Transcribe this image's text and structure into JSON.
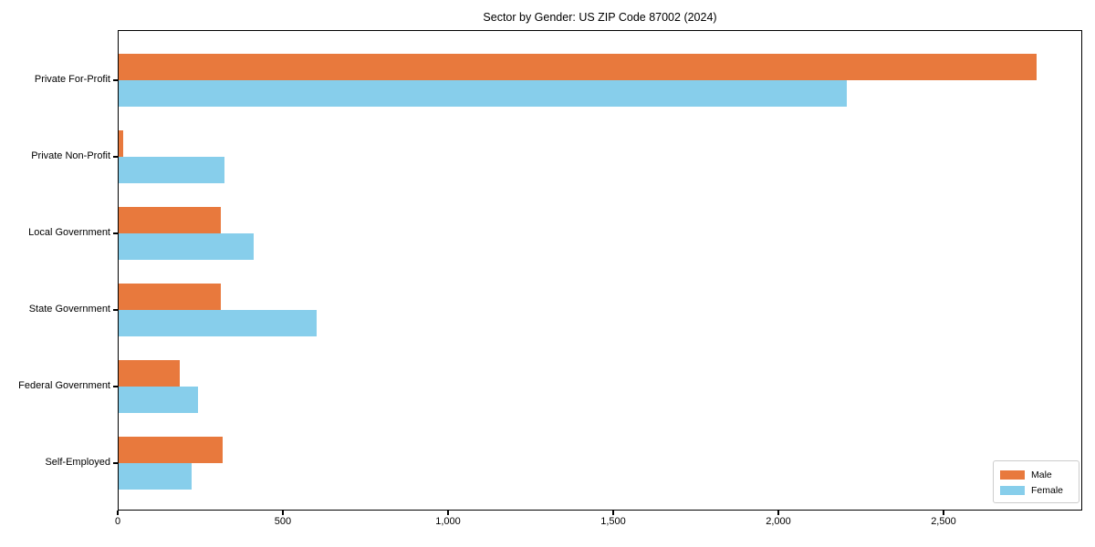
{
  "title": "Sector by Gender: US ZIP Code 87002 (2024)",
  "chart_data": {
    "type": "bar",
    "orientation": "horizontal",
    "title": "Sector by Gender: US ZIP Code 87002 (2024)",
    "categories": [
      "Private For-Profit",
      "Private Non-Profit",
      "Local Government",
      "State Government",
      "Federal Government",
      "Self-Employed"
    ],
    "series": [
      {
        "name": "Male",
        "color": "#e8793d",
        "values": [
          2780,
          15,
          310,
          310,
          185,
          315
        ]
      },
      {
        "name": "Female",
        "color": "#87ceeb",
        "values": [
          2205,
          320,
          410,
          600,
          240,
          220
        ]
      }
    ],
    "xlabel": "",
    "ylabel": "",
    "xlim": [
      0,
      2920
    ],
    "xticks": [
      0,
      500,
      1000,
      1500,
      2000,
      2500
    ],
    "xtick_labels": [
      "0",
      "500",
      "1,000",
      "1,500",
      "2,000",
      "2,500"
    ],
    "grid": false,
    "legend_position": "lower right",
    "background_color": "#ffffff",
    "spine_color": "#000000"
  }
}
